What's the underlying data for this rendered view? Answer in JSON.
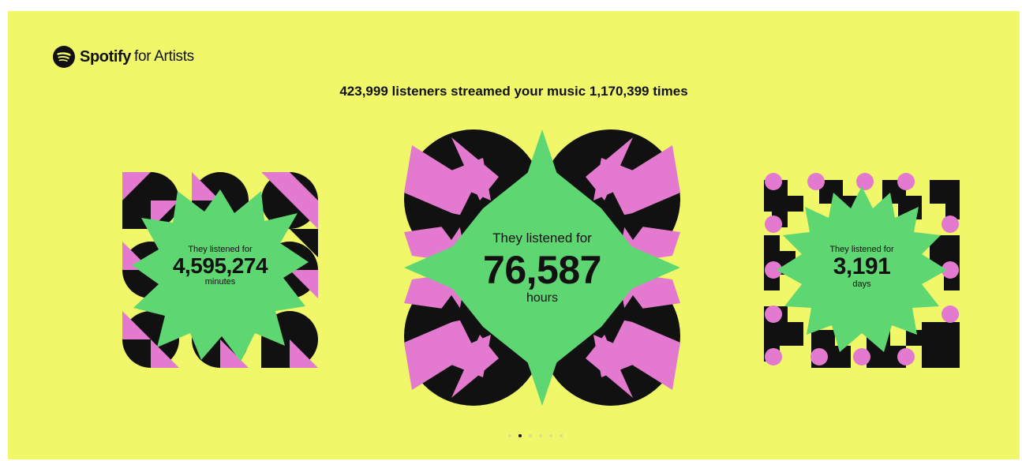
{
  "brand": {
    "name": "Spotify",
    "suffix": "for Artists",
    "icon": "spotify-logo-icon"
  },
  "headline": "423,999 listeners streamed your music 1,170,399 times",
  "cards": [
    {
      "lead": "They listened for",
      "value": "4,595,274",
      "unit": "minutes"
    },
    {
      "lead": "They listened for",
      "value": "76,587",
      "unit": "hours"
    },
    {
      "lead": "They listened for",
      "value": "3,191",
      "unit": "days"
    }
  ],
  "pagination": {
    "total": 6,
    "active": 1
  },
  "colors": {
    "background": "#f0f86a",
    "green": "#5ed672",
    "pink": "#e47ad0",
    "black": "#111111"
  }
}
